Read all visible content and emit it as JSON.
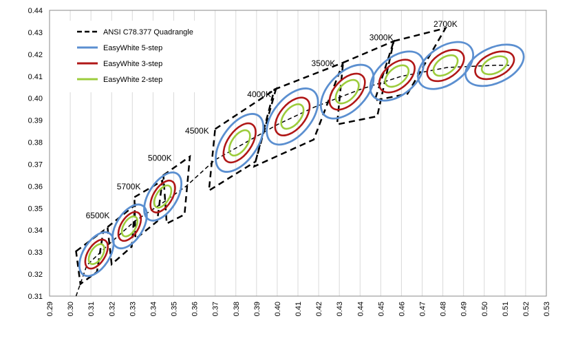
{
  "chart_data": {
    "type": "scatter",
    "xlim": [
      0.29,
      0.53
    ],
    "ylim": [
      0.31,
      0.44
    ],
    "x_ticks": [
      "0.29",
      "0.30",
      "0.31",
      "0.32",
      "0.33",
      "0.34",
      "0.35",
      "0.36",
      "0.37",
      "0.38",
      "0.39",
      "0.40",
      "0.41",
      "0.42",
      "0.43",
      "0.44",
      "0.45",
      "0.46",
      "0.47",
      "0.48",
      "0.49",
      "0.50",
      "0.51",
      "0.52",
      "0.53"
    ],
    "y_ticks": [
      "0.31",
      "0.32",
      "0.33",
      "0.34",
      "0.35",
      "0.36",
      "0.37",
      "0.38",
      "0.39",
      "0.40",
      "0.41",
      "0.42",
      "0.43",
      "0.44"
    ],
    "grid": "vertical",
    "legend_position": "top-left",
    "legend": [
      {
        "label": "ANSI C78.377 Quadrangle",
        "color": "#000000",
        "style": "dashed"
      },
      {
        "label": "EasyWhite 5-step",
        "color": "#5b8fd0",
        "style": "solid"
      },
      {
        "label": "EasyWhite 3-step",
        "color": "#b01717",
        "style": "solid"
      },
      {
        "label": "EasyWhite 2-step",
        "color": "#9ccc3c",
        "style": "solid"
      }
    ],
    "cct_labels": [
      {
        "text": "6500K",
        "x": 0.3075,
        "y": 0.3454
      },
      {
        "text": "5700K",
        "x": 0.3225,
        "y": 0.3586
      },
      {
        "text": "5000K",
        "x": 0.3375,
        "y": 0.3716
      },
      {
        "text": "4500K",
        "x": 0.3555,
        "y": 0.3839
      },
      {
        "text": "4000K",
        "x": 0.3855,
        "y": 0.4006
      },
      {
        "text": "3500K",
        "x": 0.4165,
        "y": 0.4147
      },
      {
        "text": "3000K",
        "x": 0.4445,
        "y": 0.4263
      },
      {
        "text": "2700K",
        "x": 0.4755,
        "y": 0.4325
      }
    ],
    "quadrangles": [
      {
        "cct": "6500K",
        "points": [
          [
            0.3028,
            0.3304
          ],
          [
            0.316,
            0.3397
          ],
          [
            0.3129,
            0.321
          ],
          [
            0.3049,
            0.3155
          ]
        ]
      },
      {
        "cct": "5700K",
        "points": [
          [
            0.318,
            0.3414
          ],
          [
            0.3313,
            0.3514
          ],
          [
            0.3297,
            0.3325
          ],
          [
            0.32,
            0.3245
          ]
        ]
      },
      {
        "cct": "5000K",
        "points": [
          [
            0.331,
            0.355
          ],
          [
            0.3445,
            0.3625
          ],
          [
            0.342,
            0.344
          ],
          [
            0.3315,
            0.336
          ]
        ]
      },
      {
        "cct": "4500K",
        "points": [
          [
            0.345,
            0.365
          ],
          [
            0.3578,
            0.3735
          ],
          [
            0.3552,
            0.3471
          ],
          [
            0.3466,
            0.343
          ]
        ]
      },
      {
        "cct": "4000K",
        "points": [
          [
            0.37,
            0.386
          ],
          [
            0.3994,
            0.4043
          ],
          [
            0.3895,
            0.3712
          ],
          [
            0.367,
            0.358
          ]
        ]
      },
      {
        "cct": "3500K",
        "points": [
          [
            0.3986,
            0.404
          ],
          [
            0.4318,
            0.4162
          ],
          [
            0.4176,
            0.3812
          ],
          [
            0.3889,
            0.369
          ]
        ]
      },
      {
        "cct": "3000K",
        "points": [
          [
            0.4318,
            0.4162
          ],
          [
            0.4563,
            0.426
          ],
          [
            0.4483,
            0.3918
          ],
          [
            0.4289,
            0.3881
          ]
        ]
      },
      {
        "cct": "2700K",
        "points": [
          [
            0.4563,
            0.426
          ],
          [
            0.4813,
            0.4319
          ],
          [
            0.4629,
            0.402
          ],
          [
            0.4471,
            0.399
          ]
        ]
      }
    ],
    "ellipses": [
      {
        "cx": 0.3127,
        "cy": 0.3291,
        "angle": 58,
        "r5": [
          0.0118,
          0.0064
        ],
        "r3": [
          0.0078,
          0.0042
        ],
        "r2": [
          0.0054,
          0.0029
        ]
      },
      {
        "cx": 0.3287,
        "cy": 0.3417,
        "angle": 58,
        "r5": [
          0.0118,
          0.0064
        ],
        "r3": [
          0.0078,
          0.0042
        ],
        "r2": [
          0.0054,
          0.0029
        ]
      },
      {
        "cx": 0.3447,
        "cy": 0.3553,
        "angle": 58,
        "r5": [
          0.013,
          0.0068
        ],
        "r3": [
          0.0086,
          0.0045
        ],
        "r2": [
          0.006,
          0.0031
        ]
      },
      {
        "cx": 0.3818,
        "cy": 0.3797,
        "angle": 55,
        "r5": [
          0.016,
          0.0085
        ],
        "r3": [
          0.0108,
          0.0057
        ],
        "r2": [
          0.007,
          0.0037
        ]
      },
      {
        "cx": 0.4073,
        "cy": 0.3917,
        "angle": 50,
        "r5": [
          0.016,
          0.009
        ],
        "r3": [
          0.0108,
          0.006
        ],
        "r2": [
          0.007,
          0.0039
        ]
      },
      {
        "cx": 0.4338,
        "cy": 0.403,
        "angle": 46,
        "r5": [
          0.0158,
          0.009
        ],
        "r3": [
          0.0106,
          0.006
        ],
        "r2": [
          0.0069,
          0.0039
        ]
      },
      {
        "cx": 0.4578,
        "cy": 0.4101,
        "angle": 40,
        "r5": [
          0.015,
          0.009
        ],
        "r3": [
          0.01,
          0.006
        ],
        "r2": [
          0.0066,
          0.0039
        ]
      },
      {
        "cx": 0.4813,
        "cy": 0.4149,
        "angle": 35,
        "r5": [
          0.015,
          0.009
        ],
        "r3": [
          0.01,
          0.006
        ],
        "r2": [
          0.0066,
          0.0039
        ]
      },
      {
        "cx": 0.505,
        "cy": 0.415,
        "angle": 25,
        "r5": [
          0.015,
          0.0085
        ],
        "r3": [
          0.01,
          0.0057
        ],
        "r2": [
          0.0066,
          0.0037
        ]
      }
    ],
    "locus_line": [
      [
        0.3028,
        0.31
      ],
      [
        0.308,
        0.324
      ],
      [
        0.318,
        0.333
      ],
      [
        0.331,
        0.344
      ],
      [
        0.344,
        0.352
      ],
      [
        0.356,
        0.36
      ],
      [
        0.37,
        0.372
      ],
      [
        0.385,
        0.38
      ],
      [
        0.4,
        0.388
      ],
      [
        0.418,
        0.396
      ],
      [
        0.44,
        0.404
      ],
      [
        0.46,
        0.41
      ],
      [
        0.482,
        0.414
      ],
      [
        0.505,
        0.415
      ],
      [
        0.512,
        0.415
      ]
    ],
    "colors": {
      "quadrangle": "#000000",
      "step5": "#5b8fd0",
      "step3": "#b01717",
      "step2": "#9ccc3c",
      "grid": "#d9d9d9",
      "axis": "#888888"
    }
  }
}
